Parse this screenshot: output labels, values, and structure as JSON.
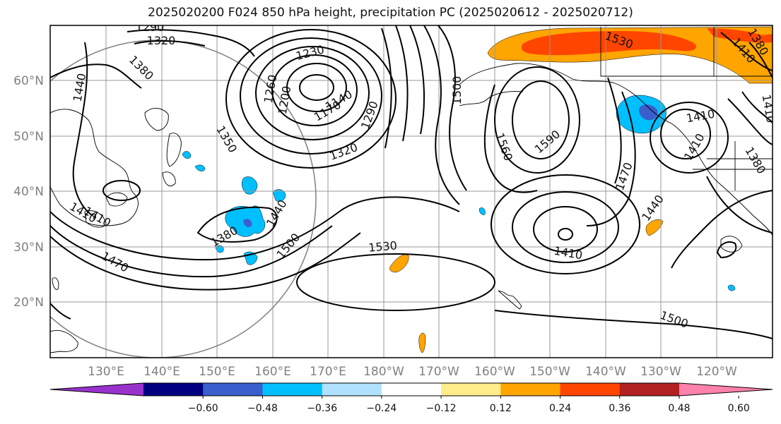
{
  "title": "2025020200 F024 850 hPa height, precipitation PC (2025020612 - 2025020712)",
  "lat_labels": [
    "60°N",
    "50°N",
    "40°N",
    "30°N",
    "20°N"
  ],
  "lon_labels": [
    "130°E",
    "140°E",
    "150°E",
    "160°E",
    "170°E",
    "180°W",
    "170°W",
    "160°W",
    "150°W",
    "140°W",
    "130°W",
    "120°W"
  ],
  "contour_labels": [
    "1290",
    "1320",
    "1380",
    "1440",
    "1230",
    "1260",
    "1200",
    "1170",
    "1140",
    "1290",
    "1350",
    "1320",
    "1500",
    "1560",
    "1590",
    "1530",
    "1410",
    "1410",
    "1380",
    "1410",
    "1470",
    "1440",
    "1410",
    "1380",
    "1440",
    "1410",
    "1500",
    "1470",
    "1530",
    "1500",
    "1410",
    "1380",
    "1410"
  ],
  "colorbar": {
    "ticks": [
      "−0.60",
      "−0.48",
      "−0.36",
      "−0.24",
      "−0.12",
      "0.12",
      "0.24",
      "0.36",
      "0.48",
      "0.60"
    ],
    "colors": [
      "#9932cc",
      "#000080",
      "#3a5fcd",
      "#00bfff",
      "#b0e2ff",
      "#ffffff",
      "#ffec8b",
      "#ffa500",
      "#ff4500",
      "#b22222",
      "#ff82ab"
    ]
  }
}
